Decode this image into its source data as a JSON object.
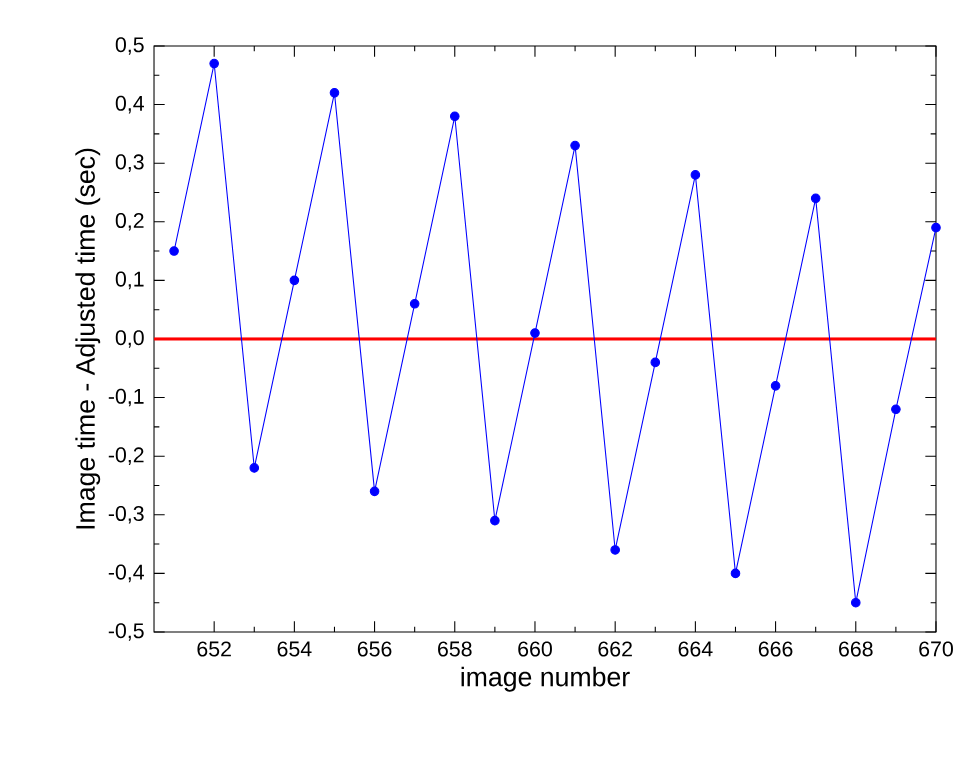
{
  "chart_data": {
    "type": "line",
    "xlabel": "image number",
    "ylabel": "Image time - Adjusted time (sec)",
    "x": [
      651,
      652,
      653,
      654,
      655,
      656,
      657,
      658,
      659,
      660,
      661,
      662,
      663,
      664,
      665,
      666,
      667,
      668,
      669,
      670
    ],
    "series": [
      {
        "color": "#0000ff",
        "values": [
          0.15,
          0.47,
          -0.22,
          0.1,
          0.42,
          -0.26,
          0.06,
          0.38,
          -0.31,
          0.01,
          0.33,
          -0.36,
          -0.04,
          0.28,
          -0.4,
          -0.08,
          0.24,
          -0.45,
          -0.12,
          0.19
        ]
      }
    ],
    "marker": "circle",
    "line_style": "solid",
    "xlim": [
      650.5,
      670
    ],
    "ylim": [
      -0.5,
      0.5
    ],
    "xticks": [
      652,
      654,
      656,
      658,
      660,
      662,
      664,
      666,
      668,
      670
    ],
    "yticks": [
      {
        "value": -0.5,
        "label": "-0,5"
      },
      {
        "value": -0.4,
        "label": "-0,4"
      },
      {
        "value": -0.3,
        "label": "-0,3"
      },
      {
        "value": -0.2,
        "label": "-0,2"
      },
      {
        "value": -0.1,
        "label": "-0,1"
      },
      {
        "value": 0.0,
        "label": "0,0"
      },
      {
        "value": 0.1,
        "label": "0,1"
      },
      {
        "value": 0.2,
        "label": "0,2"
      },
      {
        "value": 0.3,
        "label": "0,3"
      },
      {
        "value": 0.4,
        "label": "0,4"
      },
      {
        "value": 0.5,
        "label": "0,5"
      }
    ],
    "ref_lines": [
      {
        "axis": "y",
        "value": 0,
        "color": "#ff0000"
      }
    ]
  }
}
